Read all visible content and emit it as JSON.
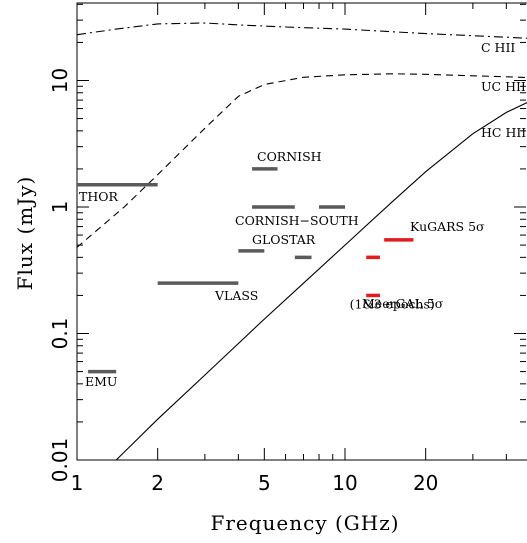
{
  "chart_data": {
    "type": "line",
    "xlabel": "Frequency (GHz)",
    "ylabel": "Flux (mJy)",
    "xscale": "log",
    "yscale": "log",
    "xlim": [
      1,
      60
    ],
    "ylim": [
      0.01,
      45
    ],
    "x_ticks": [
      {
        "value": 1,
        "label": "1"
      },
      {
        "value": 2,
        "label": "2"
      },
      {
        "value": 5,
        "label": "5"
      },
      {
        "value": 10,
        "label": "10"
      },
      {
        "value": 20,
        "label": "20"
      }
    ],
    "y_ticks": [
      {
        "value": 0.01,
        "label": "0.01"
      },
      {
        "value": 0.1,
        "label": "0.1"
      },
      {
        "value": 1,
        "label": "1"
      },
      {
        "value": 10,
        "label": "10"
      }
    ],
    "curves": [
      {
        "label": "C HII",
        "style": "dash-dot",
        "points": [
          [
            1,
            23
          ],
          [
            1.4,
            25.5
          ],
          [
            2,
            28
          ],
          [
            3,
            28.5
          ],
          [
            4,
            27.5
          ],
          [
            6,
            26.5
          ],
          [
            10,
            25.5
          ],
          [
            20,
            23.5
          ],
          [
            40,
            22
          ],
          [
            60,
            21
          ]
        ]
      },
      {
        "label": "UC HII",
        "style": "dashed",
        "points": [
          [
            1,
            0.48
          ],
          [
            1.5,
            1.0
          ],
          [
            2,
            1.8
          ],
          [
            3,
            4.2
          ],
          [
            4,
            7.5
          ],
          [
            5,
            9.3
          ],
          [
            7,
            10.6
          ],
          [
            10,
            11.1
          ],
          [
            15,
            11.3
          ],
          [
            20,
            11.2
          ],
          [
            40,
            10.7
          ],
          [
            60,
            10.4
          ]
        ]
      },
      {
        "label": "HC HII",
        "style": "solid",
        "points": [
          [
            1.4,
            0.01
          ],
          [
            2,
            0.021
          ],
          [
            3,
            0.047
          ],
          [
            5,
            0.13
          ],
          [
            7,
            0.25
          ],
          [
            10,
            0.5
          ],
          [
            15,
            1.1
          ],
          [
            20,
            1.9
          ],
          [
            30,
            3.8
          ],
          [
            40,
            5.6
          ],
          [
            50,
            7.0
          ],
          [
            60,
            8.0
          ]
        ]
      }
    ],
    "surveys": [
      {
        "name": "THOR",
        "x_range": [
          1,
          2
        ],
        "flux": 1.5,
        "color": "#5a5a5a"
      },
      {
        "name": "EMU",
        "x_range": [
          1.1,
          1.4
        ],
        "flux": 0.05,
        "color": "#5a5a5a"
      },
      {
        "name": "VLASS",
        "x_range": [
          2,
          4
        ],
        "flux": 0.25,
        "color": "#5a5a5a"
      },
      {
        "name": "CORNISH",
        "x_range": [
          4.5,
          5.6
        ],
        "flux": 2.0,
        "color": "#5a5a5a"
      },
      {
        "name": "CORNISH−SOUTH",
        "x_range": [
          4.5,
          6.5
        ],
        "flux": 1.0,
        "color": "#5a5a5a"
      },
      {
        "name": "",
        "x_range": [
          8,
          10
        ],
        "flux": 1.0,
        "color": "#5a5a5a"
      },
      {
        "name": "GLOSTAR",
        "x_range": [
          4,
          5
        ],
        "flux": 0.45,
        "color": "#5a5a5a"
      },
      {
        "name": "",
        "x_range": [
          6.5,
          7.5
        ],
        "flux": 0.4,
        "color": "#5a5a5a"
      },
      {
        "name": "KuGARS 5σ",
        "x_range": [
          14,
          18
        ],
        "flux": 0.55,
        "color": "#e41a1c"
      },
      {
        "name": "",
        "x_range": [
          12,
          13.5
        ],
        "flux": 0.4,
        "color": "#e41a1c"
      },
      {
        "name": "MeerGAL 5σ",
        "x_range": [
          12,
          13.5
        ],
        "flux": 0.2,
        "color": "#e41a1c"
      }
    ],
    "annotations": [
      {
        "text": "(1&3 epochs)",
        "x": 15.0,
        "y": 0.17
      }
    ]
  }
}
